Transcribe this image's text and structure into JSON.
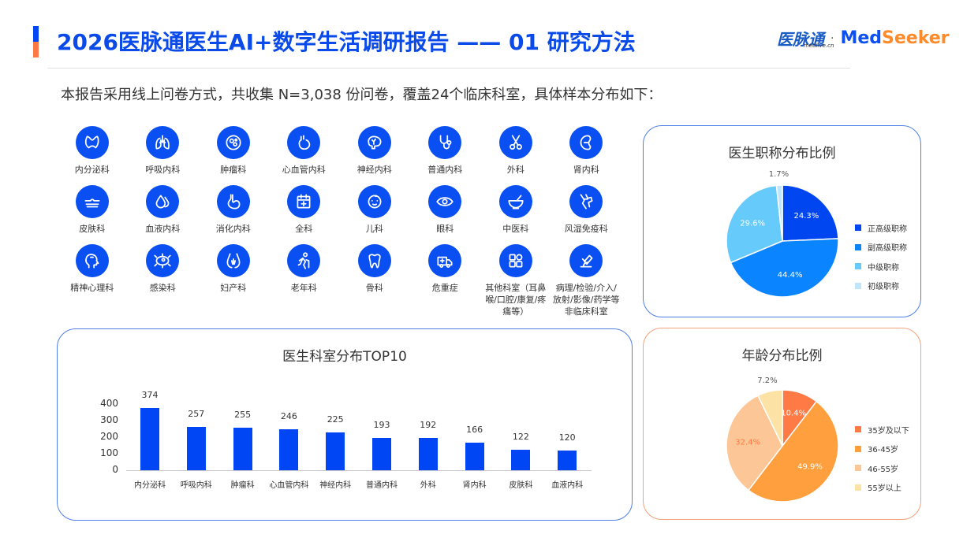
{
  "header": {
    "title": "2026医脉通医生AI+数字生活调研报告 —— 01 研究方法",
    "logo_cn": "医脉通",
    "logo_cn_sub": "medlive.cn",
    "logo_sep": "·",
    "logo_med": "Med",
    "logo_seeker": "Seeker",
    "accent_colors": [
      "#0046f5",
      "#ff7a45"
    ]
  },
  "intro": "本报告采用线上问卷方式，共收集 N=3,038 份问卷，覆盖24个临床科室，具体样本分布如下：",
  "departments": [
    {
      "label": "内分泌科",
      "icon": "thyroid-icon"
    },
    {
      "label": "呼吸内科",
      "icon": "lungs-icon"
    },
    {
      "label": "肿瘤科",
      "icon": "tumor-cell-icon"
    },
    {
      "label": "心血管内科",
      "icon": "heart-icon"
    },
    {
      "label": "神经内科",
      "icon": "brain-icon"
    },
    {
      "label": "普通内科",
      "icon": "stethoscope-icon"
    },
    {
      "label": "外科",
      "icon": "scissors-icon"
    },
    {
      "label": "肾内科",
      "icon": "kidney-icon"
    },
    {
      "label": "皮肤科",
      "icon": "skin-layer-icon"
    },
    {
      "label": "血液内科",
      "icon": "blood-drop-icon"
    },
    {
      "label": "消化内科",
      "icon": "stomach-icon"
    },
    {
      "label": "全科",
      "icon": "calendar-plus-icon"
    },
    {
      "label": "儿科",
      "icon": "baby-face-icon"
    },
    {
      "label": "眼科",
      "icon": "eye-icon"
    },
    {
      "label": "中医科",
      "icon": "mortar-pestle-icon"
    },
    {
      "label": "风湿免疫科",
      "icon": "joint-icon"
    },
    {
      "label": "精神心理科",
      "icon": "head-mind-icon"
    },
    {
      "label": "感染科",
      "icon": "bacteria-icon"
    },
    {
      "label": "妇产科",
      "icon": "pelvis-icon"
    },
    {
      "label": "老年科",
      "icon": "elderly-cane-icon"
    },
    {
      "label": "骨科",
      "icon": "tooth-bone-icon"
    },
    {
      "label": "危重症",
      "icon": "ambulance-icon"
    },
    {
      "label": "其他科室（耳鼻喉/口腔/康复/疼痛等）",
      "icon": "grid-apps-icon"
    },
    {
      "label": "病理/检验/介入/放射/影像/药学等非临床科室",
      "icon": "microscope-icon"
    }
  ],
  "chart_data": [
    {
      "type": "bar",
      "title": "医生科室分布TOP10",
      "categories": [
        "内分泌科",
        "呼吸内科",
        "肿瘤科",
        "心血管内科",
        "神经内科",
        "普通内科",
        "外科",
        "肾内科",
        "皮肤科",
        "血液内科"
      ],
      "values": [
        374,
        257,
        255,
        246,
        225,
        193,
        192,
        166,
        122,
        120
      ],
      "yticks": [
        "400",
        "300",
        "200",
        "100",
        "0"
      ],
      "ylim": [
        0,
        400
      ],
      "xlabel": "",
      "ylabel": "",
      "color": "#0046f5",
      "grid": false
    },
    {
      "type": "pie",
      "title": "医生职称分布比例",
      "labels": [
        "正高级职称",
        "副高级职称",
        "中级职称",
        "初级职称"
      ],
      "values": [
        24.3,
        44.4,
        29.6,
        1.7
      ],
      "value_labels": [
        "24.3%",
        "44.4%",
        "29.6%",
        "1.7%"
      ],
      "colors": [
        "#0046f0",
        "#0a84ff",
        "#66cbfa",
        "#bfe6fb"
      ],
      "legend_position": "right"
    },
    {
      "type": "pie",
      "title": "年龄分布比例",
      "labels": [
        "35岁及以下",
        "36-45岁",
        "46-55岁",
        "55岁以上"
      ],
      "values": [
        10.4,
        49.9,
        32.4,
        7.2
      ],
      "value_labels": [
        "10.4%",
        "49.9%",
        "32.4%",
        "7.2%"
      ],
      "colors": [
        "#ff7a45",
        "#ff9f3d",
        "#fdc697",
        "#fde2a6"
      ],
      "legend_position": "right"
    }
  ]
}
